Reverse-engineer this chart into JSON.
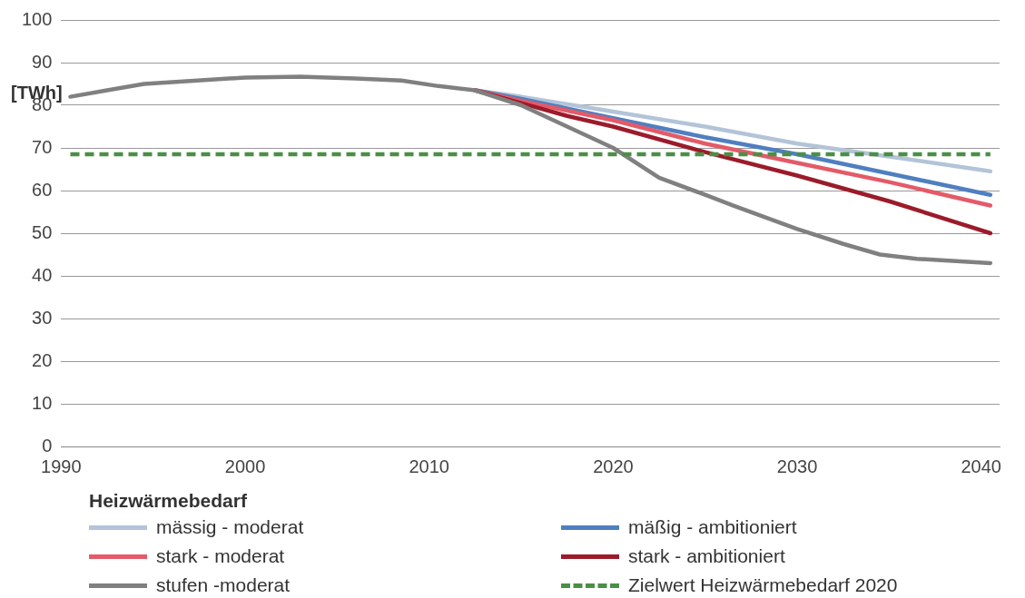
{
  "chart_data": {
    "type": "line",
    "ylabel": "[TWh]",
    "legend_title": "Heizwärmebedarf",
    "xlim": [
      1990,
      2041
    ],
    "xticks": [
      1990,
      2000,
      2010,
      2020,
      2030,
      2040
    ],
    "ylim": [
      0,
      100
    ],
    "yticks": [
      0,
      10,
      20,
      30,
      40,
      50,
      60,
      70,
      80,
      90,
      100
    ],
    "grid": "y",
    "legend": "bottom",
    "marker": "none",
    "series": [
      {
        "name": "mässig - moderat",
        "color": "#b3c4d8",
        "x": [
          2012.5,
          2015,
          2020,
          2025,
          2030,
          2035,
          2040.5
        ],
        "values": [
          83.5,
          82,
          78.5,
          75,
          71,
          68,
          64.5
        ]
      },
      {
        "name": "mäßig - ambitioniert",
        "color": "#4f7fc0",
        "x": [
          2012.5,
          2015,
          2020,
          2025,
          2030,
          2035,
          2040.5
        ],
        "values": [
          83.5,
          81.5,
          77,
          72.5,
          68.5,
          64,
          59
        ]
      },
      {
        "name": "stark - moderat",
        "color": "#e45a68",
        "x": [
          2012.5,
          2015,
          2020,
          2025,
          2030,
          2035,
          2040.5
        ],
        "values": [
          83.5,
          81,
          76.5,
          71,
          66.5,
          62,
          56.5
        ]
      },
      {
        "name": "stark - ambitioniert",
        "color": "#9b1b2a",
        "x": [
          2012.5,
          2015,
          2017.5,
          2020,
          2025,
          2030,
          2035,
          2040.5
        ],
        "values": [
          83.5,
          80.5,
          77.5,
          75,
          69,
          63.5,
          57.5,
          50
        ]
      },
      {
        "name": "stufen -moderat",
        "color": "#808080",
        "x": [
          1990.5,
          1992.5,
          1994.5,
          1997,
          2000,
          2003,
          2006,
          2008.5,
          2010.5,
          2012.5,
          2015,
          2017.5,
          2020,
          2022.5,
          2025,
          2026.5,
          2030,
          2032.5,
          2034.5,
          2036.5,
          2040.5
        ],
        "values": [
          82,
          83.5,
          85,
          85.7,
          86.5,
          86.7,
          86.3,
          85.8,
          84.5,
          83.5,
          80,
          75,
          70,
          63,
          59,
          56.5,
          51,
          47.5,
          45,
          44,
          43
        ]
      },
      {
        "name": "Zielwert Heizwärmebedarf 2020",
        "color": "#4a8f45",
        "line_style": "dashed",
        "x": [
          1990.5,
          2040.5
        ],
        "values": [
          68.5,
          68.5
        ]
      }
    ]
  }
}
